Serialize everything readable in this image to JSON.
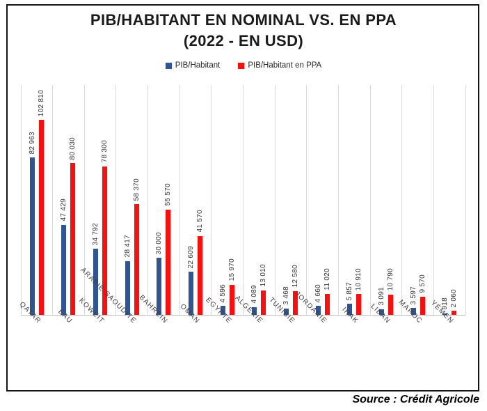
{
  "title": {
    "line1": "PIB/HABITANT EN NOMINAL VS. EN PPA",
    "line2": "(2022 - EN USD)"
  },
  "legend": [
    {
      "label": "PIB/Habitant",
      "color": "#2F5597"
    },
    {
      "label": "PIB/Habitant en PPA",
      "color": "#FF0D0D"
    }
  ],
  "source": "Source : Crédit Agricole",
  "colors": {
    "nominal": "#2F5597",
    "ppa": "#FF0D0D",
    "gridline": "#D9D9D9",
    "frame_border": "#141414"
  },
  "chart_data": {
    "type": "bar",
    "title": "PIB/HABITANT EN NOMINAL VS. EN PPA (2022 - EN USD)",
    "categories": [
      "QATAR",
      "EAU",
      "KOWEIT",
      "ARABIE SAOUDITE",
      "BAHREIN",
      "OMAN",
      "EGYPTE",
      "ALGÉRIE",
      "TUNISIE",
      "JORDANIE",
      "IRAK",
      "LIBAN",
      "MAROC",
      "YÉMEN"
    ],
    "series": [
      {
        "name": "PIB/Habitant",
        "color": "#2F5597",
        "values": [
          82963,
          47429,
          34792,
          28417,
          30000,
          22609,
          4596,
          4089,
          3468,
          4660,
          5857,
          3091,
          3597,
          918
        ],
        "labels": [
          "82 963",
          "47 429",
          "34 792",
          "28 417",
          "30 000",
          "22 609",
          "4 596",
          "4 089",
          "3 468",
          "4 660",
          "5 857",
          "3 091",
          "3 597",
          "918"
        ]
      },
      {
        "name": "PIB/Habitant en PPA",
        "color": "#FF0D0D",
        "values": [
          102810,
          80030,
          78300,
          58370,
          55570,
          41570,
          15970,
          13010,
          12580,
          11020,
          10910,
          10790,
          9570,
          2060
        ],
        "labels": [
          "102 810",
          "80 030",
          "78 300",
          "58 370",
          "55 570",
          "41 570",
          "15 970",
          "13 010",
          "12 580",
          "11 020",
          "10 910",
          "10 790",
          "9 570",
          "2 060"
        ]
      }
    ],
    "xlabel": "",
    "ylabel": "",
    "ylim": [
      0,
      110000
    ],
    "grid": "vertical category separators only",
    "legend_position": "top center",
    "value_labels": "rotated 90° above each bar",
    "category_labels": "rotated 45°"
  }
}
